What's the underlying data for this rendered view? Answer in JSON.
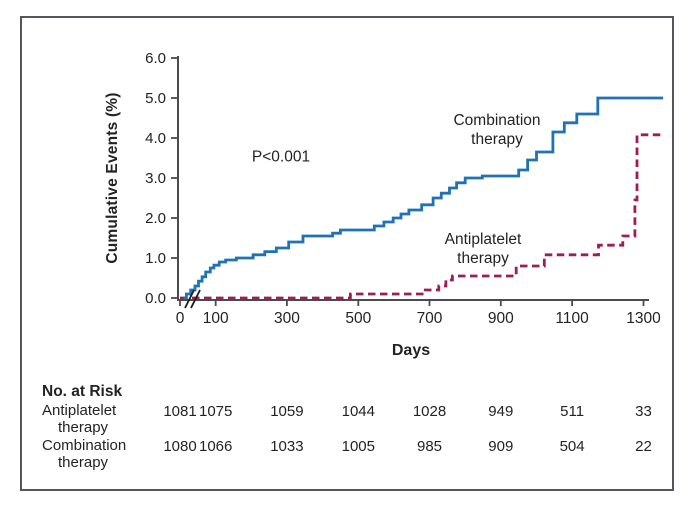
{
  "labels": {
    "p_value": "P<0.001",
    "combination_lines": [
      "Combination",
      "therapy"
    ],
    "antiplatelet_lines": [
      "Antiplatelet",
      "therapy"
    ],
    "x_axis": "Days",
    "y_axis": "Cumulative Events (%)"
  },
  "chart_data": {
    "type": "line",
    "subtype": "step",
    "title": "",
    "xlabel": "Days",
    "ylabel": "Cumulative Events (%)",
    "xlim": [
      0,
      1360
    ],
    "ylim": [
      0,
      6
    ],
    "x_ticks": [
      0,
      100,
      300,
      500,
      700,
      900,
      1100,
      1300
    ],
    "y_tick_labels": [
      "0.0",
      "1.0",
      "2.0",
      "3.0",
      "4.0",
      "5.0",
      "6.0"
    ],
    "grid": false,
    "axis_break_after_origin": true,
    "annotation": "P<0.001",
    "series": [
      {
        "name": "Combination therapy",
        "color": "#1f72b5",
        "style": "solid",
        "points": [
          [
            10,
            0
          ],
          [
            18,
            0.1
          ],
          [
            30,
            0.2
          ],
          [
            42,
            0.3
          ],
          [
            52,
            0.42
          ],
          [
            62,
            0.53
          ],
          [
            72,
            0.65
          ],
          [
            85,
            0.75
          ],
          [
            95,
            0.82
          ],
          [
            110,
            0.9
          ],
          [
            128,
            0.95
          ],
          [
            158,
            1.0
          ],
          [
            205,
            1.08
          ],
          [
            238,
            1.16
          ],
          [
            270,
            1.25
          ],
          [
            305,
            1.4
          ],
          [
            345,
            1.55
          ],
          [
            428,
            1.62
          ],
          [
            450,
            1.7
          ],
          [
            545,
            1.8
          ],
          [
            572,
            1.9
          ],
          [
            598,
            2.0
          ],
          [
            620,
            2.1
          ],
          [
            642,
            2.2
          ],
          [
            678,
            2.33
          ],
          [
            710,
            2.5
          ],
          [
            733,
            2.62
          ],
          [
            756,
            2.75
          ],
          [
            776,
            2.88
          ],
          [
            800,
            3.0
          ],
          [
            848,
            3.05
          ],
          [
            950,
            3.2
          ],
          [
            975,
            3.45
          ],
          [
            1000,
            3.65
          ],
          [
            1046,
            4.15
          ],
          [
            1078,
            4.38
          ],
          [
            1113,
            4.6
          ],
          [
            1172,
            5.0
          ],
          [
            1355,
            5.0
          ]
        ]
      },
      {
        "name": "Antiplatelet therapy",
        "color": "#9e1d54",
        "style": "dashed",
        "points": [
          [
            0,
            0
          ],
          [
            478,
            0.1
          ],
          [
            688,
            0.2
          ],
          [
            726,
            0.3
          ],
          [
            746,
            0.45
          ],
          [
            764,
            0.55
          ],
          [
            943,
            0.8
          ],
          [
            1022,
            1.08
          ],
          [
            1174,
            1.32
          ],
          [
            1242,
            1.55
          ],
          [
            1276,
            2.45
          ],
          [
            1282,
            4.08
          ],
          [
            1355,
            4.08
          ]
        ]
      }
    ]
  },
  "risk_table": {
    "title": "No. at Risk",
    "columns_days": [
      0,
      100,
      300,
      500,
      700,
      900,
      1100,
      1300
    ],
    "rows": [
      {
        "label_lines": [
          "Antiplatelet",
          "therapy"
        ],
        "values": [
          1081,
          1075,
          1059,
          1044,
          1028,
          949,
          511,
          33
        ]
      },
      {
        "label_lines": [
          "Combination",
          "therapy"
        ],
        "values": [
          1080,
          1066,
          1033,
          1005,
          985,
          909,
          504,
          22
        ]
      }
    ]
  }
}
